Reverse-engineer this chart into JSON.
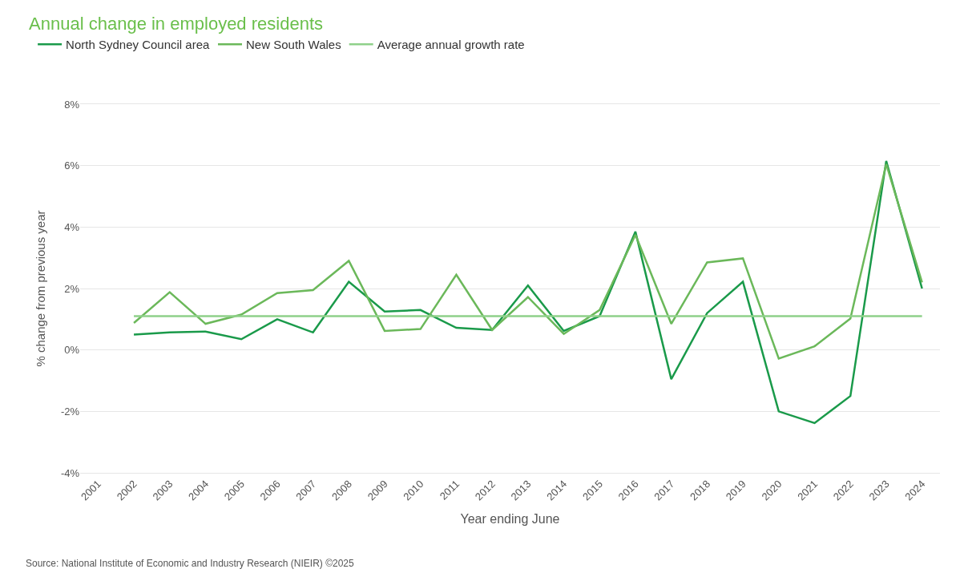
{
  "chart_data": {
    "type": "line",
    "title": "Annual change in employed residents",
    "xlabel": "Year ending June",
    "ylabel": "% change from previous year",
    "categories": [
      "2001",
      "2002",
      "2003",
      "2004",
      "2005",
      "2006",
      "2007",
      "2008",
      "2009",
      "2010",
      "2011",
      "2012",
      "2013",
      "2014",
      "2015",
      "2016",
      "2017",
      "2018",
      "2019",
      "2020",
      "2021",
      "2022",
      "2023",
      "2024"
    ],
    "series": [
      {
        "name": "North Sydney Council area",
        "color": "#1a9a4a",
        "values": [
          null,
          0.5,
          0.57,
          0.6,
          0.35,
          1.0,
          0.57,
          2.22,
          1.25,
          1.3,
          0.72,
          0.65,
          2.1,
          0.62,
          1.1,
          3.85,
          -0.95,
          1.2,
          2.22,
          -2.0,
          -2.38,
          -1.5,
          6.15,
          2.0
        ]
      },
      {
        "name": "New South Wales",
        "color": "#6bb85a",
        "values": [
          null,
          0.88,
          1.88,
          0.85,
          1.15,
          1.85,
          1.95,
          2.9,
          0.62,
          0.68,
          2.45,
          0.65,
          1.72,
          0.52,
          1.3,
          3.75,
          0.85,
          2.85,
          2.98,
          -0.28,
          0.12,
          1.02,
          6.05,
          2.2
        ]
      },
      {
        "name": "Average annual growth rate",
        "color": "#8fd18a",
        "values": [
          null,
          1.1,
          1.1,
          1.1,
          1.1,
          1.1,
          1.1,
          1.1,
          1.1,
          1.1,
          1.1,
          1.1,
          1.1,
          1.1,
          1.1,
          1.1,
          1.1,
          1.1,
          1.1,
          1.1,
          1.1,
          1.1,
          1.1,
          1.1
        ]
      }
    ],
    "ylim": [
      -4,
      8
    ],
    "yticks": [
      {
        "value": -4,
        "label": "-4%"
      },
      {
        "value": -2,
        "label": "-2%"
      },
      {
        "value": 0,
        "label": "0%"
      },
      {
        "value": 2,
        "label": "2%"
      },
      {
        "value": 4,
        "label": "4%"
      },
      {
        "value": 6,
        "label": "6%"
      },
      {
        "value": 8,
        "label": "8%"
      }
    ],
    "grid": "y",
    "legend": "top left",
    "marker": "none",
    "line_style": "solid",
    "annotations": [
      "Source: National Institute of Economic and Industry Research (NIEIR) ©2025"
    ]
  }
}
